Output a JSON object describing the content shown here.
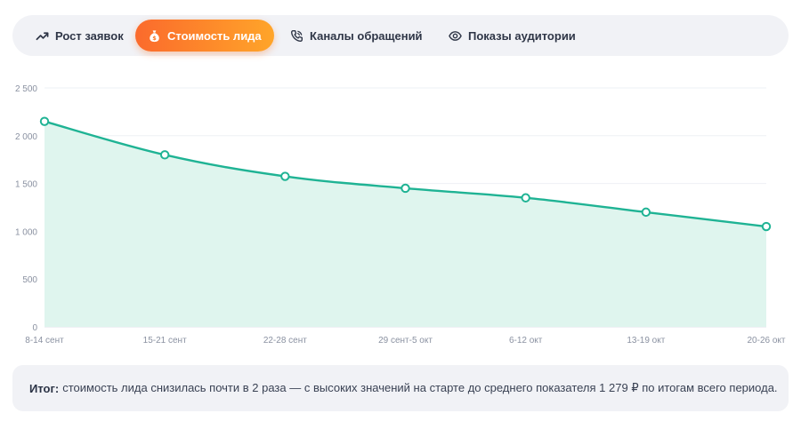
{
  "tabs": [
    {
      "label": "Рост заявок",
      "icon": "trending-up-icon",
      "active": false
    },
    {
      "label": "Стоимость лида",
      "icon": "money-bag-icon",
      "active": true
    },
    {
      "label": "Каналы обращений",
      "icon": "phone-icon",
      "active": false
    },
    {
      "label": "Показы аудитории",
      "icon": "eye-icon",
      "active": false
    }
  ],
  "colors": {
    "accent_start": "#fb6a2c",
    "accent_end": "#ffa529",
    "line": "#1fb394",
    "area_fill": "#dff5ee",
    "panel": "#f1f2f6"
  },
  "chart_data": {
    "type": "area",
    "categories": [
      "8-14 сент",
      "15-21 сент",
      "22-28 сент",
      "29 сент-5 окт",
      "6-12 окт",
      "13-19 окт",
      "20-26 окт"
    ],
    "values": [
      2150,
      1800,
      1575,
      1450,
      1350,
      1200,
      1050
    ],
    "ylim": [
      0,
      2500
    ],
    "yticks": [
      0,
      500,
      1000,
      1500,
      2000,
      2500
    ],
    "ytick_labels": [
      "0",
      "500",
      "1 000",
      "1 500",
      "2 000",
      "2 500"
    ],
    "grid": true,
    "title": "",
    "xlabel": "",
    "ylabel": ""
  },
  "summary": {
    "lead": "Итог:",
    "text": "стоимость лида снизилась почти в 2 раза — с высоких значений на старте до среднего показателя 1 279 ₽ по итогам всего периода."
  }
}
